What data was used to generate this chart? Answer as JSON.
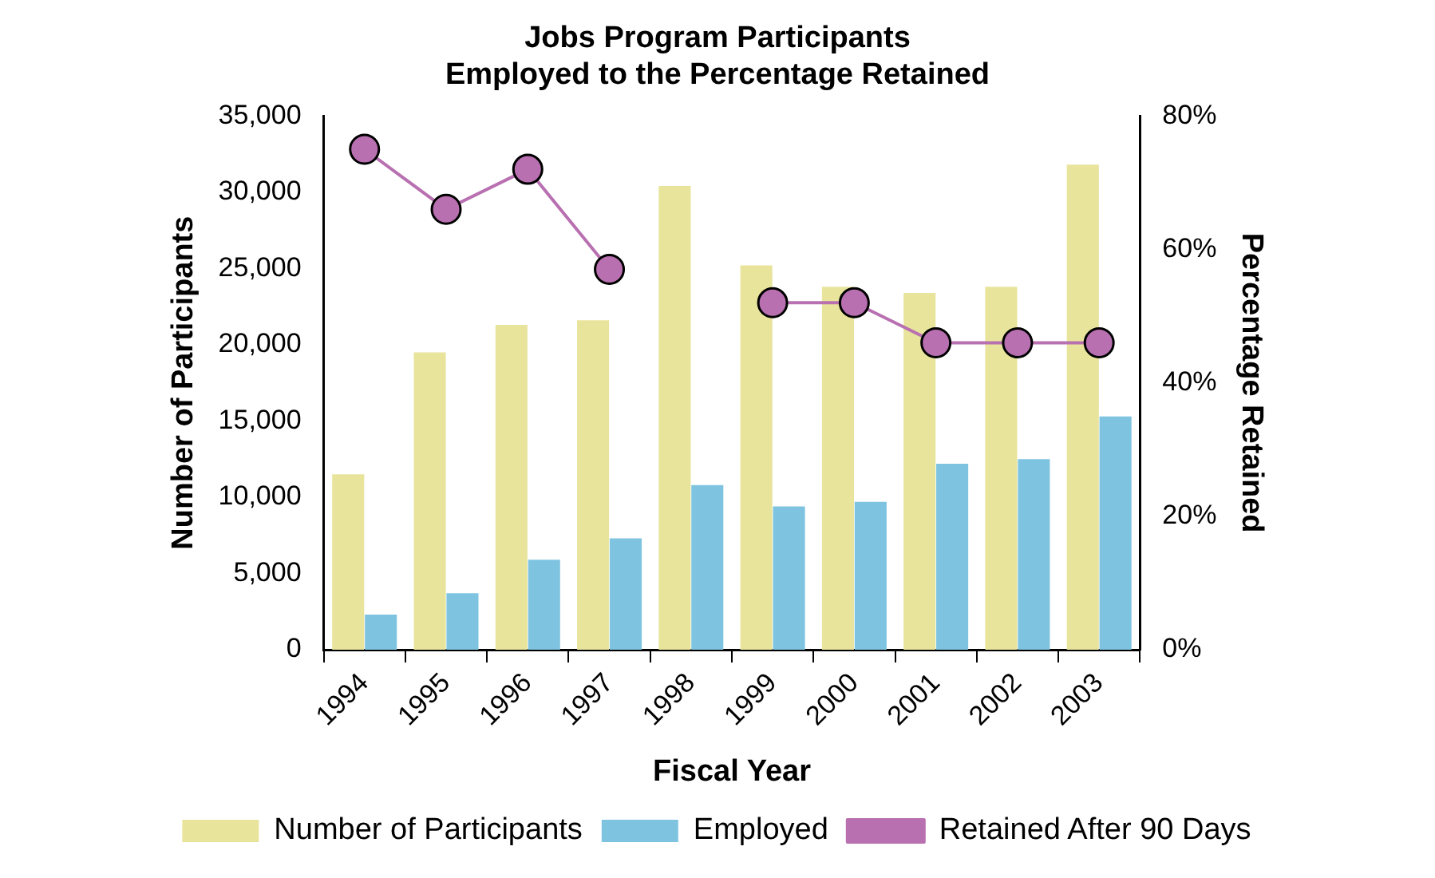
{
  "chart_data": {
    "type": "bar",
    "title": [
      "Jobs Program Participants",
      "Employed to the Percentage Retained"
    ],
    "xlabel": "Fiscal Year",
    "ylabel": "Number of Participants",
    "y2label": "Percentage Retained",
    "categories": [
      "1994",
      "1995",
      "1996",
      "1997",
      "1998",
      "1999",
      "2000",
      "2001",
      "2002",
      "2003"
    ],
    "series": [
      {
        "name": "Number of Participants",
        "color": "#e8e49c",
        "values": [
          11500,
          19500,
          21300,
          21600,
          30400,
          25200,
          23800,
          23400,
          23800,
          31800
        ]
      },
      {
        "name": "Employed",
        "color": "#7ec4e0",
        "values": [
          2300,
          3700,
          5900,
          7300,
          10800,
          9400,
          9700,
          12200,
          12500,
          15300
        ]
      },
      {
        "name": "Retained After 90 Days",
        "type": "line",
        "axis": "y2",
        "color": "#b870b0",
        "values": [
          75,
          66,
          72,
          57,
          null,
          52,
          52,
          46,
          46,
          46
        ]
      }
    ],
    "ylim": [
      0,
      35000
    ],
    "yticks": [
      {
        "value": 0,
        "label": "0"
      },
      {
        "value": 5000,
        "label": "5,000"
      },
      {
        "value": 10000,
        "label": "10,000"
      },
      {
        "value": 15000,
        "label": "15,000"
      },
      {
        "value": 20000,
        "label": "20,000"
      },
      {
        "value": 25000,
        "label": "25,000"
      },
      {
        "value": 30000,
        "label": "30,000"
      },
      {
        "value": 35000,
        "label": "35,000"
      }
    ],
    "y2lim": [
      0,
      80
    ],
    "y2ticks": [
      {
        "value": 0,
        "label": "0%"
      },
      {
        "value": 20,
        "label": "20%"
      },
      {
        "value": 40,
        "label": "40%"
      },
      {
        "value": 60,
        "label": "60%"
      },
      {
        "value": 80,
        "label": "80%"
      }
    ],
    "grid": false,
    "legend": "bottom",
    "marker": "circle"
  }
}
